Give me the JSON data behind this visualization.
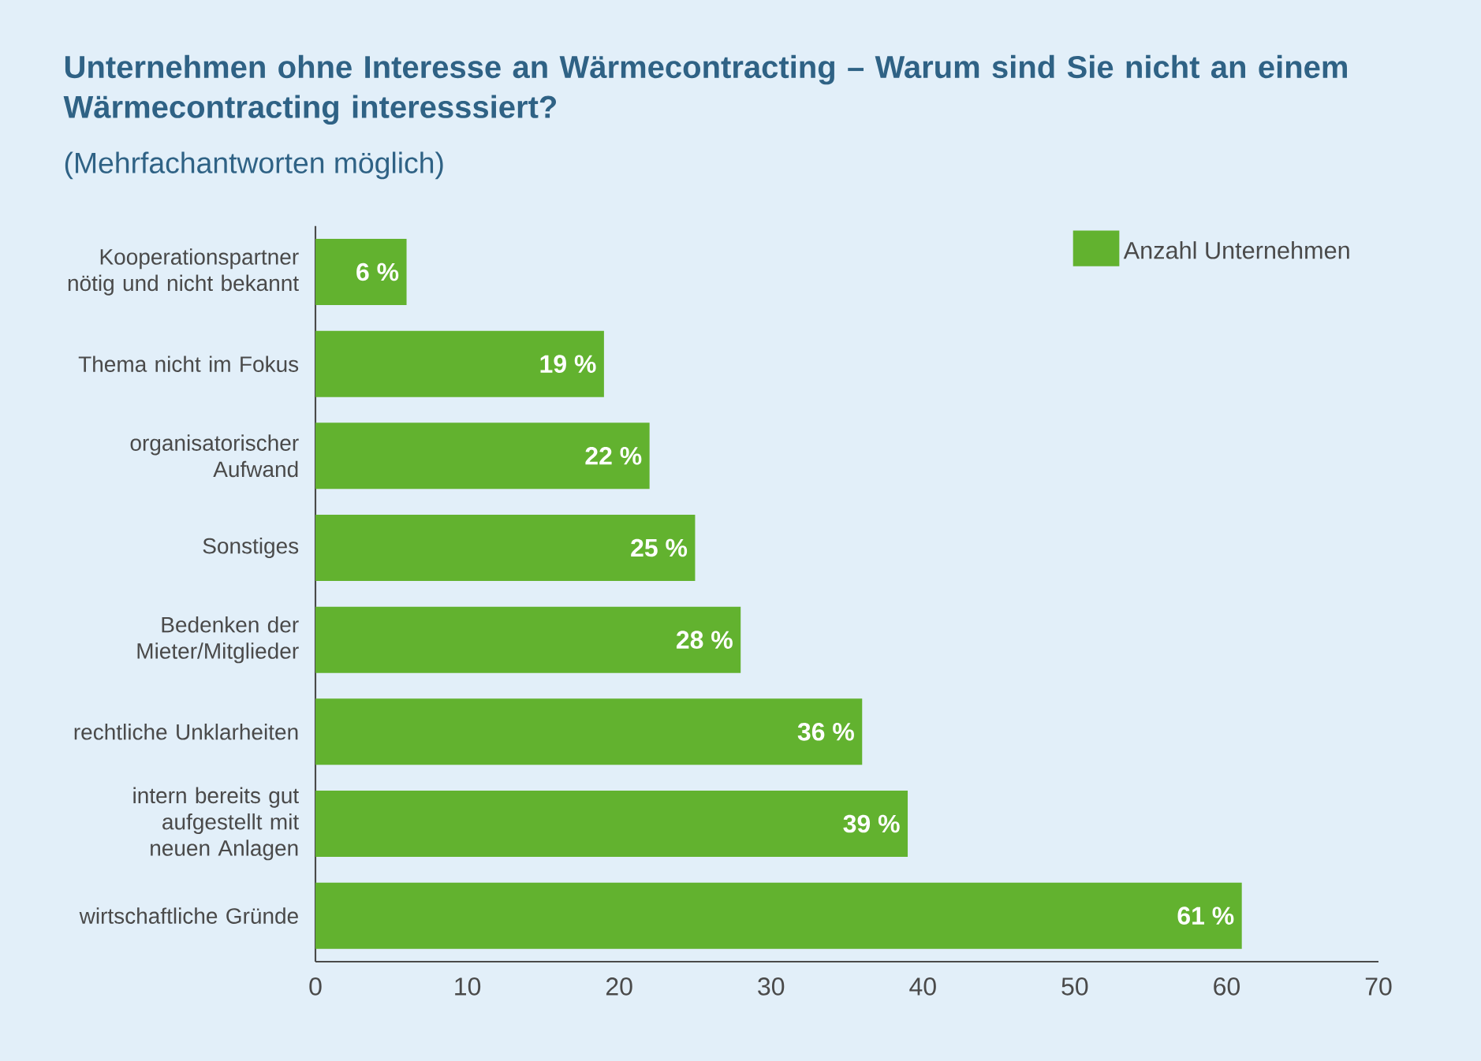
{
  "chart_data": {
    "type": "bar",
    "orientation": "horizontal",
    "title": "Unternehmen ohne Interesse an Wärmecontracting – Warum sind Sie nicht an einem Wärmecontracting interesssiert?",
    "subtitle": "(Mehrfachantworten möglich)",
    "categories": [
      "Kooperationspartner nötig und nicht bekannt",
      "Thema nicht im Fokus",
      "organisatorischer Aufwand",
      "Sonstiges",
      "Bedenken der Mieter/Mitglieder",
      "rechtliche Unklarheiten",
      "intern bereits gut aufgestellt mit neuen Anlagen",
      "wirtschaftliche Gründe"
    ],
    "series": [
      {
        "name": "Anzahl Unternehmen",
        "color": "#62b22f",
        "values": [
          6,
          19,
          22,
          25,
          28,
          36,
          39,
          61
        ],
        "value_labels": [
          "6 %",
          "19 %",
          "22 %",
          "25 %",
          "28 %",
          "36 %",
          "39 %",
          "61 %"
        ]
      }
    ],
    "xlim": [
      0,
      70
    ],
    "xticks": [
      0,
      10,
      20,
      30,
      40,
      50,
      60,
      70
    ],
    "grid": false,
    "legend": "top right"
  }
}
